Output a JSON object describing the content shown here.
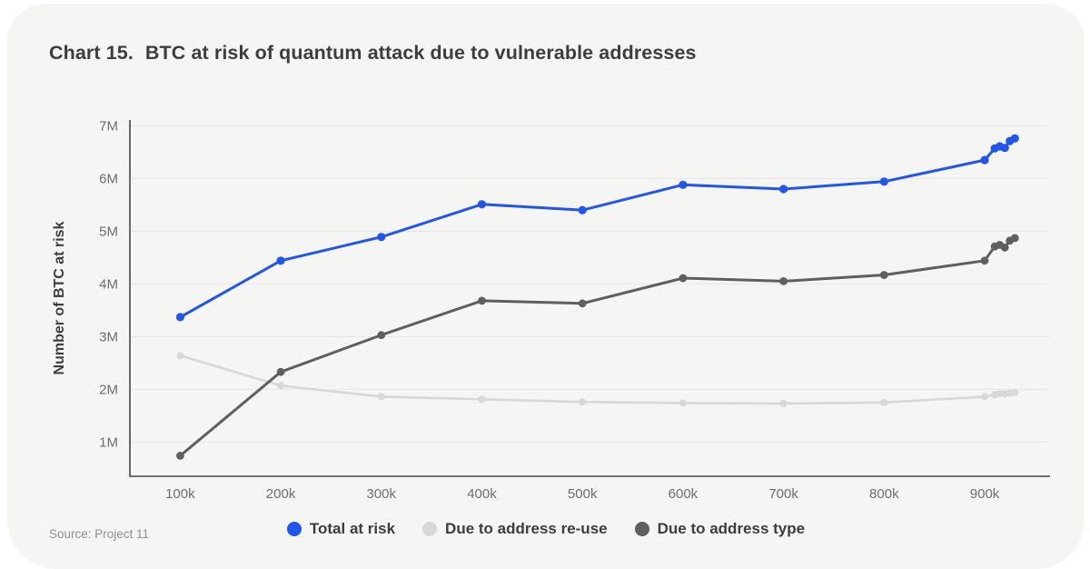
{
  "header": {
    "chart_number": "Chart 15.",
    "title": "BTC at risk of quantum attack due to vulnerable addresses"
  },
  "footer": {
    "source": "Source: Project 11"
  },
  "colors": {
    "card_background": "#f5f5f4",
    "page_background": "#ffffff",
    "title_text": "#3d3d3c",
    "tick_text": "#6e6e6d",
    "grid_line": "#e6e6e4",
    "axis_spine": "#454544",
    "source_text": "#8f8f8e",
    "series_total": "#2256eb",
    "series_reuse": "#d8d8d6",
    "series_type": "#5f5f5f"
  },
  "chart_data": {
    "type": "line",
    "title": "Chart 15. BTC at risk of quantum attack due to vulnerable addresses",
    "xlabel": "",
    "ylabel": "Number of BTC at risk",
    "x_unit": "blocks (thousands)",
    "y_unit": "BTC (millions)",
    "x_k": [
      100,
      200,
      300,
      400,
      500,
      600,
      700,
      800,
      900,
      910,
      915,
      920,
      925,
      930
    ],
    "xticks": {
      "values_k": [
        100,
        200,
        300,
        400,
        500,
        600,
        700,
        800,
        900
      ],
      "labels": [
        "100k",
        "200k",
        "300k",
        "400k",
        "500k",
        "600k",
        "700k",
        "800k",
        "900k"
      ]
    },
    "yticks": {
      "values_m": [
        1,
        2,
        3,
        4,
        5,
        6,
        7
      ],
      "labels": [
        "1M",
        "2M",
        "3M",
        "4M",
        "5M",
        "6M",
        "7M"
      ]
    },
    "xlim_k": [
      50,
      965
    ],
    "ylim_m": [
      0.35,
      7.11
    ],
    "grid": "horizontal-only",
    "legend_position": "bottom-center",
    "series": [
      {
        "key": "reuse",
        "name": "Due to address re-use",
        "color": "#d8d8d6",
        "line_width": 2.6,
        "marker_radius": 4,
        "values_m": [
          2.64,
          2.07,
          1.86,
          1.81,
          1.76,
          1.74,
          1.73,
          1.75,
          1.86,
          1.9,
          1.92,
          1.91,
          1.93,
          1.94
        ]
      },
      {
        "key": "type",
        "name": "Due to address type",
        "color": "#5f5f5f",
        "line_width": 3,
        "marker_radius": 4.4,
        "values_m": [
          0.74,
          2.33,
          3.03,
          3.68,
          3.63,
          4.11,
          4.05,
          4.17,
          4.44,
          4.71,
          4.74,
          4.69,
          4.82,
          4.87
        ]
      },
      {
        "key": "total",
        "name": "Total at risk",
        "color": "#2256eb",
        "line_width": 3,
        "marker_radius": 4.6,
        "values_m": [
          3.37,
          4.44,
          4.89,
          5.51,
          5.4,
          5.88,
          5.8,
          5.94,
          6.35,
          6.57,
          6.61,
          6.58,
          6.71,
          6.76
        ]
      }
    ],
    "legend_order": [
      "total",
      "reuse",
      "type"
    ]
  }
}
